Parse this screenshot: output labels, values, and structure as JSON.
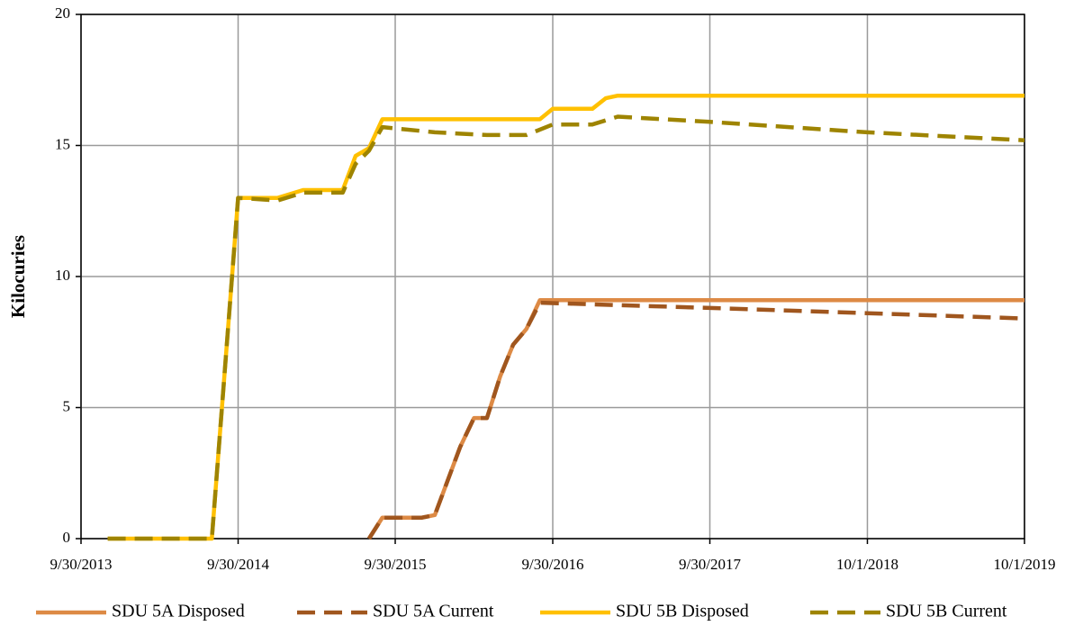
{
  "chart_data": {
    "type": "line",
    "y_label": "Kilocuries",
    "xlim": [
      "9/30/2013",
      "10/1/2019"
    ],
    "xticks": [
      "9/30/2013",
      "9/30/2014",
      "9/30/2015",
      "9/30/2016",
      "9/30/2017",
      "10/1/2018",
      "10/1/2019"
    ],
    "ylim": [
      0,
      20
    ],
    "yticks": [
      0,
      5,
      10,
      15,
      20
    ],
    "grid": true,
    "legend": "bottom",
    "series": [
      {
        "name": "SDU 5A Disposed",
        "color": "#dd8a45",
        "dash": false,
        "x": [
          "7/31/2015",
          "8/31/2015",
          "12/1/2015",
          "12/31/2015",
          "2/28/2016",
          "3/31/2016",
          "4/30/2016",
          "5/31/2016",
          "6/30/2016",
          "7/31/2016",
          "8/31/2016",
          "10/1/2019"
        ],
        "values": [
          0,
          0.8,
          0.8,
          0.9,
          3.5,
          4.6,
          4.6,
          6.2,
          7.4,
          8.0,
          9.1,
          9.1
        ]
      },
      {
        "name": "SDU 5A Current",
        "color": "#a0561e",
        "dash": true,
        "x": [
          "7/31/2015",
          "8/31/2015",
          "12/1/2015",
          "12/31/2015",
          "2/28/2016",
          "3/31/2016",
          "4/30/2016",
          "5/31/2016",
          "6/30/2016",
          "7/31/2016",
          "8/31/2016",
          "9/30/2017",
          "10/1/2018",
          "10/1/2019"
        ],
        "values": [
          0,
          0.8,
          0.8,
          0.9,
          3.5,
          4.6,
          4.6,
          6.2,
          7.4,
          8.0,
          9.0,
          8.8,
          8.6,
          8.4
        ]
      },
      {
        "name": "SDU 5B Disposed",
        "color": "#ffc000",
        "dash": false,
        "x": [
          "12/1/2013",
          "7/31/2014",
          "9/30/2014",
          "12/31/2014",
          "2/28/2015",
          "5/31/2015",
          "6/30/2015",
          "7/31/2015",
          "8/31/2015",
          "8/31/2016",
          "9/30/2016",
          "12/31/2016",
          "1/31/2017",
          "2/28/2017",
          "10/1/2019"
        ],
        "values": [
          0,
          0,
          13.0,
          13.0,
          13.3,
          13.3,
          14.6,
          14.9,
          16.0,
          16.0,
          16.4,
          16.4,
          16.8,
          16.9,
          16.9
        ]
      },
      {
        "name": "SDU 5B Current",
        "color": "#9e8400",
        "dash": true,
        "x": [
          "12/1/2013",
          "7/31/2014",
          "9/30/2014",
          "12/31/2014",
          "2/28/2015",
          "5/31/2015",
          "6/30/2015",
          "7/31/2015",
          "8/31/2015",
          "12/31/2015",
          "4/30/2016",
          "7/31/2016",
          "9/30/2016",
          "12/31/2016",
          "2/28/2017",
          "9/30/2017",
          "10/1/2018",
          "10/1/2019"
        ],
        "values": [
          0,
          0,
          13.0,
          12.9,
          13.2,
          13.2,
          14.3,
          14.8,
          15.7,
          15.5,
          15.4,
          15.4,
          15.8,
          15.8,
          16.1,
          15.9,
          15.5,
          15.2
        ]
      }
    ]
  }
}
